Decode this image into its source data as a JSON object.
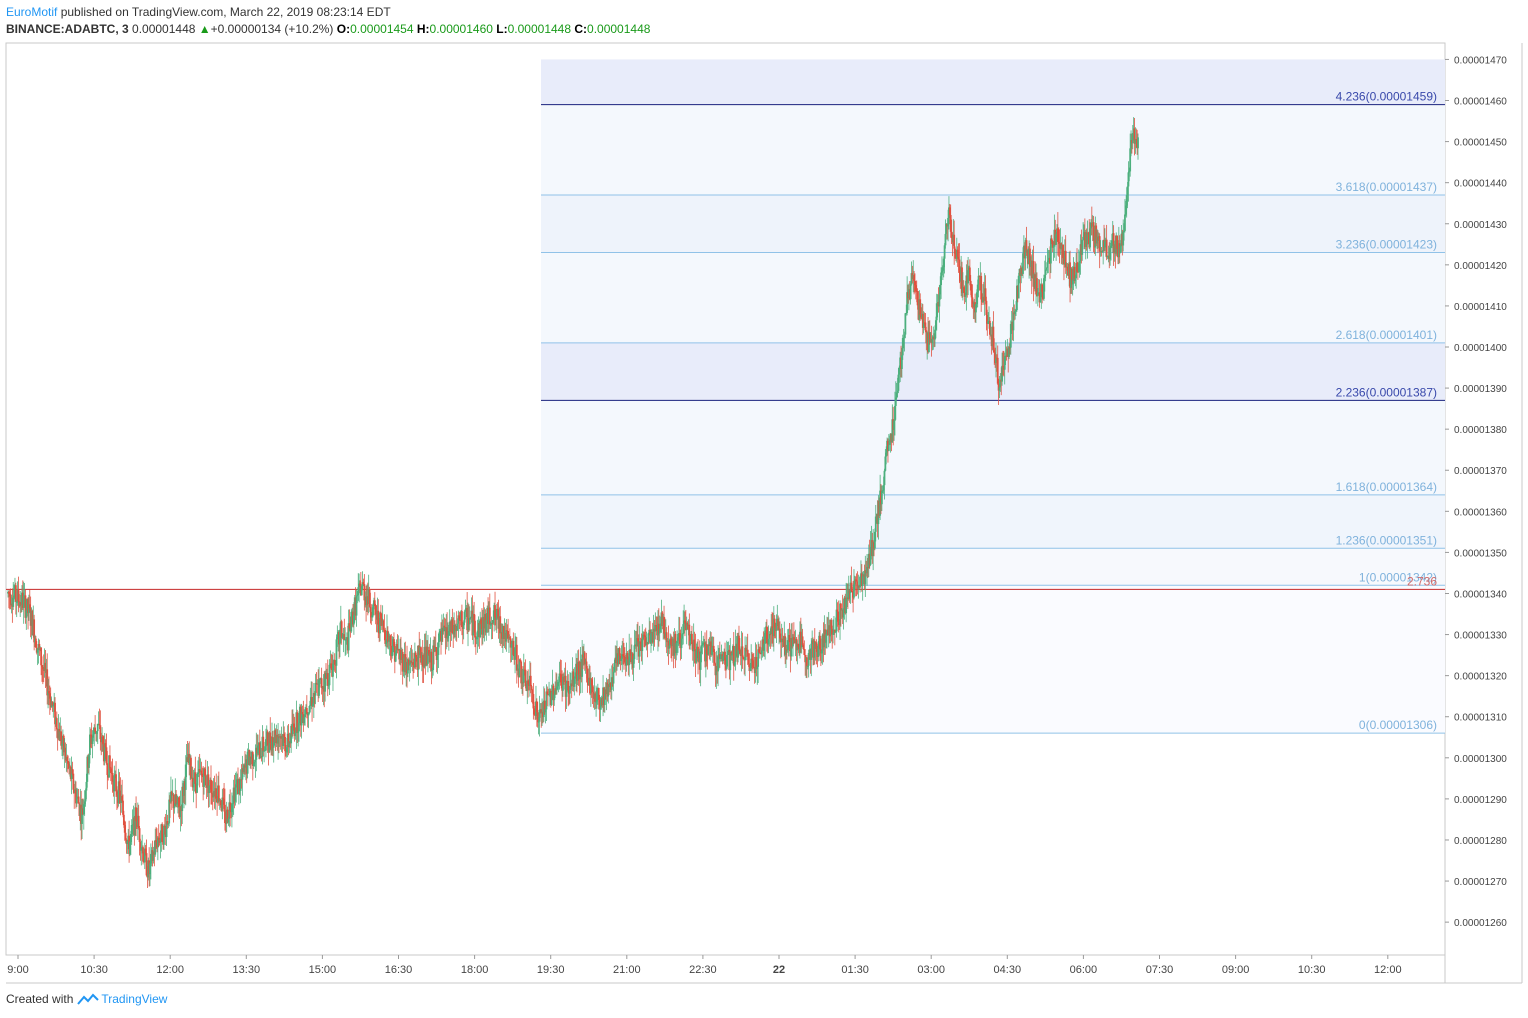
{
  "header": {
    "author": "EuroMotif",
    "published": "published on TradingView.com, March 22, 2019 08:23:14 EDT",
    "symbol": "BINANCE:ADABTC, 3",
    "last": "0.00001448",
    "change": "+0.00000134 (+10.2%)",
    "o_label": "O:",
    "o_value": "0.00001454",
    "h_label": "H:",
    "h_value": "0.00001460",
    "l_label": "L:",
    "l_value": "0.00001448",
    "c_label": "C:",
    "c_value": "0.00001448"
  },
  "footer": {
    "created": "Created with",
    "brand": "TradingView"
  },
  "colors": {
    "up": "#4caf7d",
    "down": "#e0513f",
    "fib_dark": "#1a237e",
    "fib_light": "#90c2e8",
    "resistance": "#c62828"
  },
  "chart_data": {
    "type": "candlestick",
    "ylim": [
      1.252e-05,
      1.474e-05
    ],
    "y_ticks": [
      "0.00001470",
      "0.00001460",
      "0.00001450",
      "0.00001440",
      "0.00001430",
      "0.00001420",
      "0.00001410",
      "0.00001400",
      "0.00001390",
      "0.00001380",
      "0.00001370",
      "0.00001360",
      "0.00001350",
      "0.00001340",
      "0.00001330",
      "0.00001320",
      "0.00001310",
      "0.00001300",
      "0.00001290",
      "0.00001280",
      "0.00001270",
      "0.00001260"
    ],
    "x_ticks": [
      "9:00",
      "10:30",
      "12:00",
      "13:30",
      "15:00",
      "16:30",
      "18:00",
      "19:30",
      "21:00",
      "22:30",
      "22",
      "01:30",
      "03:00",
      "04:30",
      "06:00",
      "07:30",
      "09:00",
      "10:30",
      "12:00"
    ],
    "x_bold": "22",
    "series_points": [
      [
        0,
        1.34e-05
      ],
      [
        3,
        1.339e-05
      ],
      [
        6,
        1.338e-05
      ],
      [
        9,
        1.334e-05
      ],
      [
        12,
        1.326e-05
      ],
      [
        16,
        1.316e-05
      ],
      [
        20,
        1.306e-05
      ],
      [
        23,
        1.299e-05
      ],
      [
        26,
        1.292e-05
      ],
      [
        29,
        1.286e-05
      ],
      [
        32,
        1.304e-05
      ],
      [
        35,
        1.308e-05
      ],
      [
        38,
        1.3e-05
      ],
      [
        41,
        1.295e-05
      ],
      [
        44,
        1.29e-05
      ],
      [
        47,
        1.278e-05
      ],
      [
        50,
        1.286e-05
      ],
      [
        53,
        1.276e-05
      ],
      [
        55,
        1.272e-05
      ],
      [
        58,
        1.28e-05
      ],
      [
        61,
        1.282e-05
      ],
      [
        64,
        1.29e-05
      ],
      [
        67,
        1.287e-05
      ],
      [
        70,
        1.299e-05
      ],
      [
        73,
        1.294e-05
      ],
      [
        76,
        1.296e-05
      ],
      [
        79,
        1.293e-05
      ],
      [
        82,
        1.292e-05
      ],
      [
        85,
        1.285e-05
      ],
      [
        88,
        1.292e-05
      ],
      [
        91,
        1.294e-05
      ],
      [
        94,
        1.3e-05
      ],
      [
        97,
        1.301e-05
      ],
      [
        100,
        1.303e-05
      ],
      [
        103,
        1.305e-05
      ],
      [
        106,
        1.306e-05
      ],
      [
        109,
        1.303e-05
      ],
      [
        112,
        1.308e-05
      ],
      [
        115,
        1.311e-05
      ],
      [
        118,
        1.314e-05
      ],
      [
        121,
        1.317e-05
      ],
      [
        124,
        1.319e-05
      ],
      [
        127,
        1.323e-05
      ],
      [
        130,
        1.331e-05
      ],
      [
        132,
        1.327e-05
      ],
      [
        135,
        1.336e-05
      ],
      [
        138,
        1.342e-05
      ],
      [
        141,
        1.338e-05
      ],
      [
        144,
        1.334e-05
      ],
      [
        147,
        1.331e-05
      ],
      [
        150,
        1.327e-05
      ],
      [
        153,
        1.325e-05
      ],
      [
        156,
        1.322e-05
      ],
      [
        159,
        1.324e-05
      ],
      [
        162,
        1.325e-05
      ],
      [
        165,
        1.323e-05
      ],
      [
        168,
        1.328e-05
      ],
      [
        171,
        1.33e-05
      ],
      [
        174,
        1.331e-05
      ],
      [
        177,
        1.333e-05
      ],
      [
        180,
        1.334e-05
      ],
      [
        183,
        1.331e-05
      ],
      [
        186,
        1.333e-05
      ],
      [
        189,
        1.335e-05
      ],
      [
        192,
        1.333e-05
      ],
      [
        195,
        1.328e-05
      ],
      [
        198,
        1.325e-05
      ],
      [
        201,
        1.319e-05
      ],
      [
        204,
        1.317e-05
      ],
      [
        207,
        1.309e-05
      ],
      [
        210,
        1.313e-05
      ],
      [
        213,
        1.317e-05
      ],
      [
        216,
        1.319e-05
      ],
      [
        219,
        1.316e-05
      ],
      [
        222,
        1.321e-05
      ],
      [
        225,
        1.323e-05
      ],
      [
        228,
        1.316e-05
      ],
      [
        231,
        1.314e-05
      ],
      [
        234,
        1.317e-05
      ],
      [
        237,
        1.322e-05
      ],
      [
        240,
        1.326e-05
      ],
      [
        243,
        1.324e-05
      ],
      [
        246,
        1.327e-05
      ],
      [
        249,
        1.328e-05
      ],
      [
        252,
        1.33e-05
      ],
      [
        255,
        1.334e-05
      ],
      [
        258,
        1.328e-05
      ],
      [
        261,
        1.327e-05
      ],
      [
        264,
        1.332e-05
      ],
      [
        267,
        1.327e-05
      ],
      [
        270,
        1.324e-05
      ],
      [
        273,
        1.327e-05
      ],
      [
        276,
        1.323e-05
      ],
      [
        279,
        1.325e-05
      ],
      [
        282,
        1.324e-05
      ],
      [
        285,
        1.327e-05
      ],
      [
        288,
        1.324e-05
      ],
      [
        291,
        1.323e-05
      ],
      [
        294,
        1.326e-05
      ],
      [
        297,
        1.331e-05
      ],
      [
        300,
        1.332e-05
      ],
      [
        303,
        1.328e-05
      ],
      [
        306,
        1.327e-05
      ],
      [
        309,
        1.328e-05
      ],
      [
        312,
        1.325e-05
      ],
      [
        315,
        1.326e-05
      ],
      [
        318,
        1.328e-05
      ],
      [
        321,
        1.332e-05
      ],
      [
        324,
        1.334e-05
      ],
      [
        327,
        1.338e-05
      ],
      [
        330,
        1.342e-05
      ],
      [
        333,
        1.344e-05
      ],
      [
        336,
        1.347e-05
      ],
      [
        339,
        1.357e-05
      ],
      [
        341,
        1.365e-05
      ],
      [
        343,
        1.374e-05
      ],
      [
        345,
        1.38e-05
      ],
      [
        347,
        1.39e-05
      ],
      [
        349,
        1.4e-05
      ],
      [
        351,
        1.412e-05
      ],
      [
        353,
        1.417e-05
      ],
      [
        355,
        1.41e-05
      ],
      [
        357,
        1.406e-05
      ],
      [
        359,
        1.401e-05
      ],
      [
        361,
        1.403e-05
      ],
      [
        363,
        1.41e-05
      ],
      [
        365,
        1.421e-05
      ],
      [
        367,
        1.432e-05
      ],
      [
        369,
        1.427e-05
      ],
      [
        371,
        1.42e-05
      ],
      [
        373,
        1.414e-05
      ],
      [
        375,
        1.417e-05
      ],
      [
        377,
        1.41e-05
      ],
      [
        379,
        1.415e-05
      ],
      [
        381,
        1.412e-05
      ],
      [
        383,
        1.405e-05
      ],
      [
        385,
        1.4e-05
      ],
      [
        387,
        1.39e-05
      ],
      [
        389,
        1.397e-05
      ],
      [
        391,
        1.402e-05
      ],
      [
        393,
        1.41e-05
      ],
      [
        395,
        1.418e-05
      ],
      [
        397,
        1.425e-05
      ],
      [
        399,
        1.42e-05
      ],
      [
        401,
        1.416e-05
      ],
      [
        403,
        1.412e-05
      ],
      [
        405,
        1.416e-05
      ],
      [
        407,
        1.424e-05
      ],
      [
        409,
        1.427e-05
      ],
      [
        411,
        1.425e-05
      ],
      [
        413,
        1.42e-05
      ],
      [
        415,
        1.416e-05
      ],
      [
        417,
        1.419e-05
      ],
      [
        419,
        1.425e-05
      ],
      [
        421,
        1.426e-05
      ],
      [
        423,
        1.428e-05
      ],
      [
        425,
        1.426e-05
      ],
      [
        427,
        1.424e-05
      ],
      [
        429,
        1.423e-05
      ],
      [
        431,
        1.426e-05
      ],
      [
        433,
        1.424e-05
      ],
      [
        435,
        1.426e-05
      ],
      [
        437,
        1.44e-05
      ],
      [
        439,
        1.454e-05
      ],
      [
        441,
        1.448e-05
      ]
    ],
    "x_extent": 560,
    "fib": {
      "start_index": 208,
      "levels": [
        {
          "ratio": "4.236",
          "price": 1.459e-05,
          "label": "4.236(0.00001459)",
          "dark": true
        },
        {
          "ratio": "3.618",
          "price": 1.437e-05,
          "label": "3.618(0.00001437)",
          "dark": false
        },
        {
          "ratio": "3.236",
          "price": 1.423e-05,
          "label": "3.236(0.00001423)",
          "dark": false
        },
        {
          "ratio": "2.618",
          "price": 1.401e-05,
          "label": "2.618(0.00001401)",
          "dark": false
        },
        {
          "ratio": "2.236",
          "price": 1.387e-05,
          "label": "2.236(0.00001387)",
          "dark": true
        },
        {
          "ratio": "1.618",
          "price": 1.364e-05,
          "label": "1.618(0.00001364)",
          "dark": false
        },
        {
          "ratio": "1.236",
          "price": 1.351e-05,
          "label": "1.236(0.00001351)",
          "dark": false
        },
        {
          "ratio": "1",
          "price": 1.342e-05,
          "label": "1(0.00001342)",
          "dark": false
        },
        {
          "ratio": "0",
          "price": 1.306e-05,
          "label": "0(0.00001306)",
          "dark": false
        }
      ],
      "top_band": 1.47e-05
    },
    "resistance": {
      "price": 1.341e-05,
      "label": "2.736"
    }
  }
}
